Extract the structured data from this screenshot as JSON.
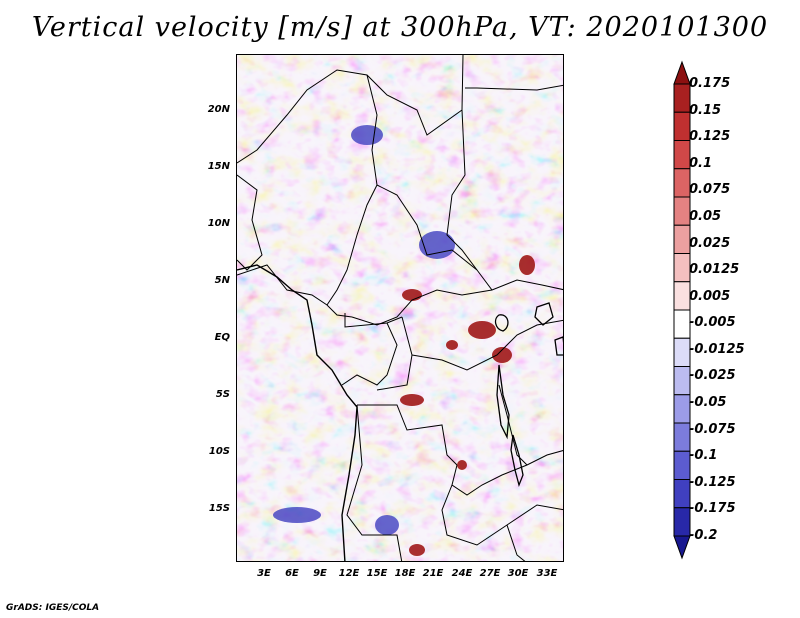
{
  "title": "Vertical velocity [m/s] at 300hPa, VT: 2020101300",
  "credit": "GrADS: IGES/COLA",
  "map": {
    "variable": "Vertical velocity",
    "units": "m/s",
    "level": "300hPa",
    "valid_time": "2020101300",
    "lat_labels": [
      "20N",
      "15N",
      "10N",
      "5N",
      "EQ",
      "5S",
      "10S",
      "15S"
    ],
    "lon_labels": [
      "3E",
      "6E",
      "9E",
      "12E",
      "15E",
      "18E",
      "21E",
      "24E",
      "27E",
      "30E",
      "33E"
    ]
  },
  "colorbar": {
    "labels": [
      "0.175",
      "0.15",
      "0.125",
      "0.1",
      "0.075",
      "0.05",
      "0.025",
      "0.0125",
      "0.005",
      "-0.005",
      "-0.0125",
      "-0.025",
      "-0.05",
      "-0.075",
      "-0.1",
      "-0.125",
      "-0.175",
      "-0.2"
    ],
    "colors": [
      "#8c1010",
      "#a82020",
      "#c03030",
      "#d04848",
      "#dc6464",
      "#e48282",
      "#eca0a0",
      "#f4c0c0",
      "#fae0e0",
      "#ffffff",
      "#dcdcf8",
      "#bcbcf0",
      "#9c9ce8",
      "#7c7cdc",
      "#5c5cd0",
      "#4040c0",
      "#2828a8",
      "#181890"
    ]
  }
}
